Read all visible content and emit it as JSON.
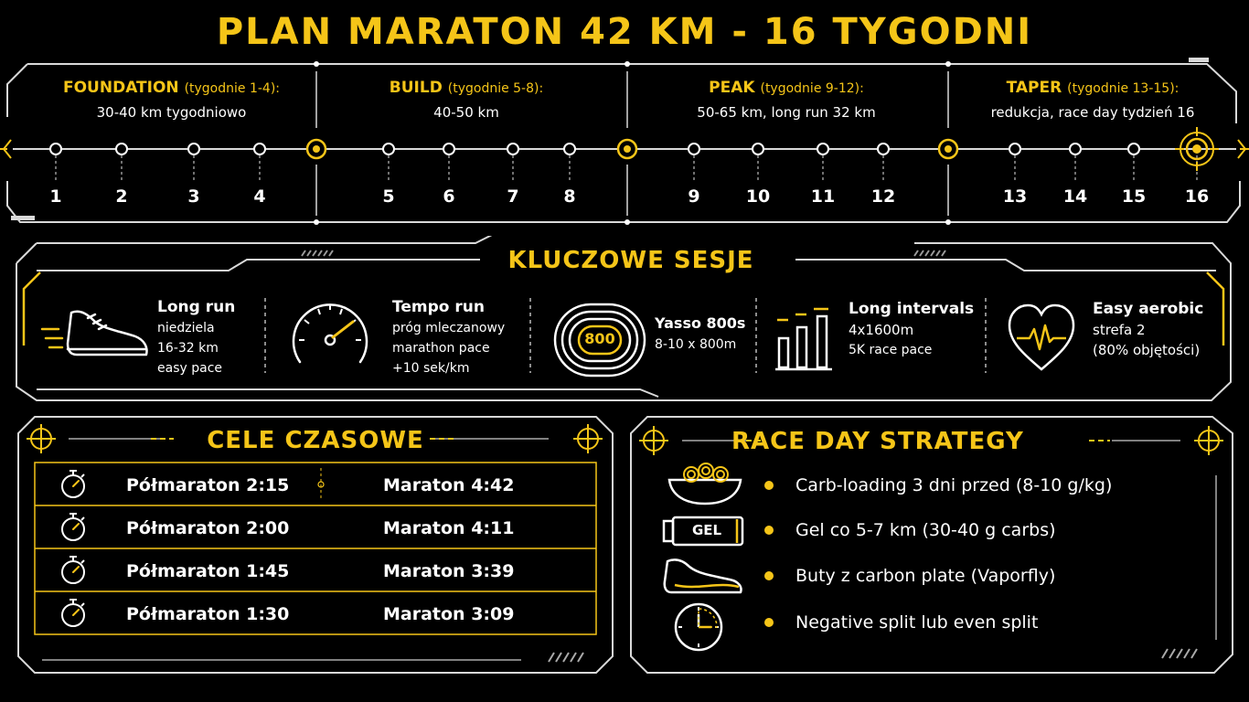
{
  "title": "PLAN MARATON 42 KM - 16 TYGODNI",
  "phases": [
    {
      "name": "FOUNDATION",
      "range": "(tygodnie 1-4):",
      "desc": "30-40 km tygodniowo"
    },
    {
      "name": "BUILD",
      "range": "(tygodnie 5-8):",
      "desc": "40-50 km"
    },
    {
      "name": "PEAK",
      "range": "(tygodnie 9-12):",
      "desc": "50-65 km, long run 32 km"
    },
    {
      "name": "TAPER",
      "range": "(tygodnie 13-15):",
      "desc": "redukcja, race day tydzień 16"
    }
  ],
  "weeks": [
    "1",
    "2",
    "3",
    "4",
    "5",
    "6",
    "7",
    "8",
    "9",
    "10",
    "11",
    "12",
    "13",
    "14",
    "15",
    "16"
  ],
  "sessions_title": "KLUCZOWE SESJE",
  "sessions": [
    {
      "title": "Long run",
      "lines": [
        "niedziela",
        "16-32 km",
        "easy pace"
      ],
      "icon": "running-shoe-icon"
    },
    {
      "title": "Tempo run",
      "lines": [
        "próg mleczanowy",
        "marathon pace",
        "+10 sek/km"
      ],
      "icon": "speedometer-icon"
    },
    {
      "title": "Yasso 800s",
      "lines": [
        "8-10 x 800m"
      ],
      "icon": "running-track-icon",
      "badge": "800"
    },
    {
      "title": "Long intervals",
      "lines": [
        "4x1600m",
        "5K race pace"
      ],
      "icon": "bar-chart-icon"
    },
    {
      "title": "Easy aerobic",
      "lines": [
        "strefa 2",
        "(80% objętości)"
      ],
      "icon": "heart-pulse-icon"
    }
  ],
  "goals_title": "CELE CZASOWE",
  "goals": [
    {
      "half": "Półmaraton 2:15",
      "full": "Maraton 4:42"
    },
    {
      "half": "Półmaraton 2:00",
      "full": "Maraton 4:11"
    },
    {
      "half": "Półmaraton 1:45",
      "full": "Maraton 3:39"
    },
    {
      "half": "Półmaraton 1:30",
      "full": "Maraton 3:09"
    }
  ],
  "strategy_title": "RACE DAY STRATEGY",
  "strategy": [
    {
      "text": "Carb-loading 3 dni przed (8-10 g/kg)",
      "icon": "pasta-bowl-icon"
    },
    {
      "text": "Gel co 5-7 km (30-40 g carbs)",
      "icon": "energy-gel-icon",
      "badge": "GEL"
    },
    {
      "text": "Buty z carbon plate (Vaporfly)",
      "icon": "carbon-shoe-icon"
    },
    {
      "text": "Negative split lub even split",
      "icon": "clock-icon"
    }
  ],
  "colors": {
    "accent": "#f5c518",
    "background": "#000000",
    "text": "#ffffff"
  }
}
